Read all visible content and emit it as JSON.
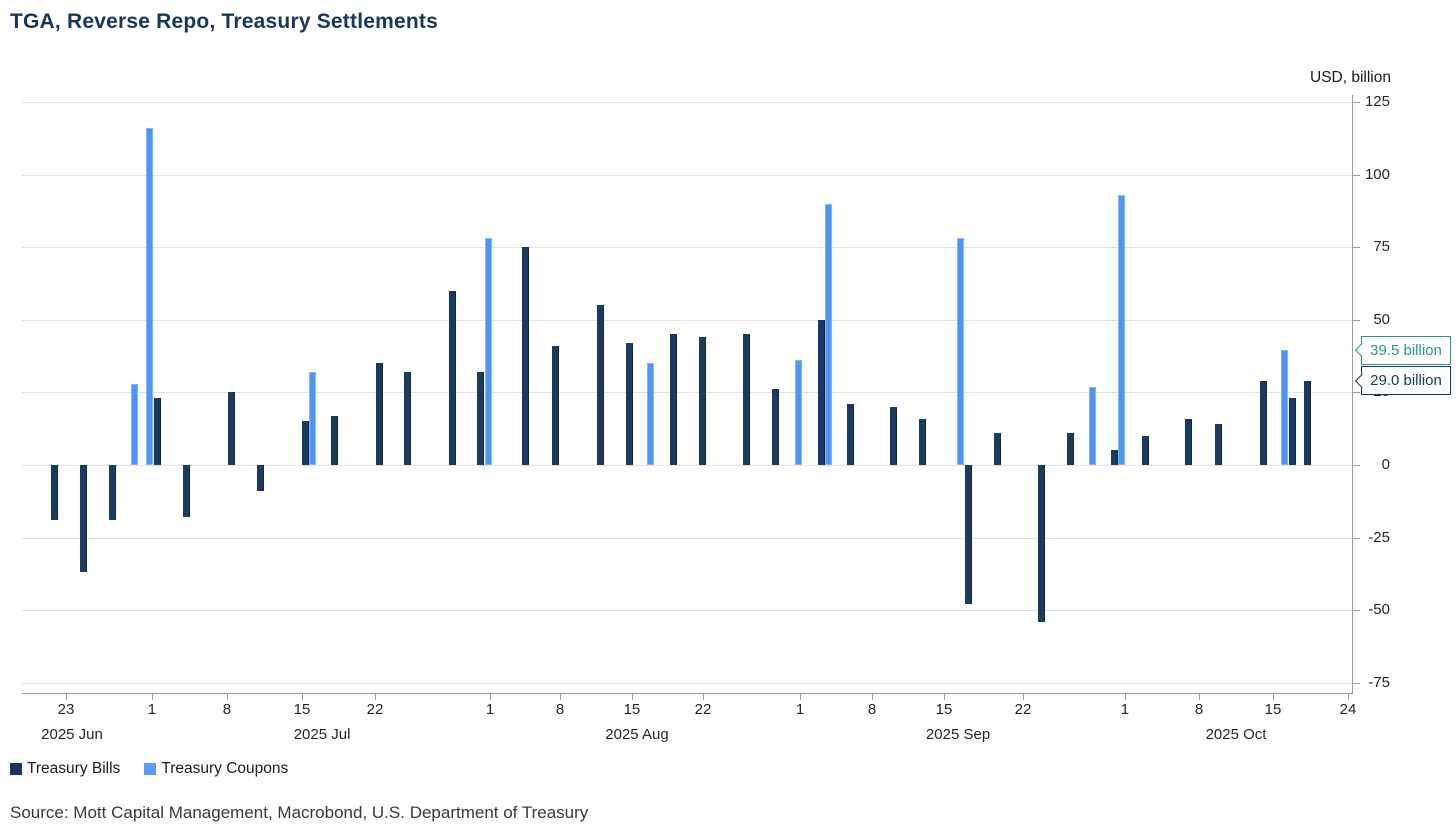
{
  "header": {
    "title": "TGA, Reverse Repo, Treasury Settlements"
  },
  "footer": {
    "source": "Source: Mott Capital Management, Macrobond, U.S. Department of Treasury"
  },
  "chart_data": {
    "type": "bar",
    "title": "TGA, Reverse Repo, Treasury Settlements",
    "ylabel": "USD, billion",
    "xlabel": "",
    "grid": true,
    "legend_position": "bottom-left",
    "axis_color": "#9b9b9b",
    "gridline_color": "#e2e2e2",
    "value_axis": {
      "side": "right",
      "plot_top_value": 127.4,
      "plot_bottom_value": -78.5,
      "ylim": [
        -75,
        125
      ]
    },
    "yticks": [
      125,
      100,
      75,
      50,
      25,
      0,
      -25,
      -50,
      -75
    ],
    "xticks": [
      {
        "label": "23",
        "pos": 0.0331
      },
      {
        "label": "1",
        "pos": 0.0977
      },
      {
        "label": "8",
        "pos": 0.1541
      },
      {
        "label": "15",
        "pos": 0.2105
      },
      {
        "label": "22",
        "pos": 0.2654
      },
      {
        "label": "1",
        "pos": 0.3519
      },
      {
        "label": "8",
        "pos": 0.4045
      },
      {
        "label": "15",
        "pos": 0.4586
      },
      {
        "label": "22",
        "pos": 0.512
      },
      {
        "label": "1",
        "pos": 0.585
      },
      {
        "label": "8",
        "pos": 0.6391
      },
      {
        "label": "15",
        "pos": 0.6932
      },
      {
        "label": "22",
        "pos": 0.7526
      },
      {
        "label": "1",
        "pos": 0.8293
      },
      {
        "label": "8",
        "pos": 0.885
      },
      {
        "label": "15",
        "pos": 0.9406
      },
      {
        "label": "24",
        "pos": 0.997
      }
    ],
    "month_labels": [
      {
        "label": "2025 Jun",
        "pos": 0.0376
      },
      {
        "label": "2025 Jul",
        "pos": 0.2256
      },
      {
        "label": "2025 Aug",
        "pos": 0.4624
      },
      {
        "label": "2025 Sep",
        "pos": 0.7038
      },
      {
        "label": "2025 Oct",
        "pos": 0.9128
      }
    ],
    "series": [
      {
        "key": "bills",
        "name": "Treasury Bills",
        "color": "#17365d"
      },
      {
        "key": "coupons",
        "name": "Treasury Coupons",
        "color": "#5b9bf8"
      }
    ],
    "bars": [
      {
        "pos": 0.0248,
        "series": "bills",
        "value": -19
      },
      {
        "pos": 0.0462,
        "series": "bills",
        "value": -37
      },
      {
        "pos": 0.068,
        "series": "bills",
        "value": -19
      },
      {
        "pos": 0.0846,
        "series": "coupons",
        "value": 28
      },
      {
        "pos": 0.0959,
        "series": "coupons",
        "value": 116
      },
      {
        "pos": 0.1019,
        "series": "bills",
        "value": 23
      },
      {
        "pos": 0.1237,
        "series": "bills",
        "value": -18
      },
      {
        "pos": 0.1575,
        "series": "bills",
        "value": 25
      },
      {
        "pos": 0.1793,
        "series": "bills",
        "value": -9
      },
      {
        "pos": 0.2128,
        "series": "bills",
        "value": 15
      },
      {
        "pos": 0.2184,
        "series": "coupons",
        "value": 32
      },
      {
        "pos": 0.235,
        "series": "bills",
        "value": 17
      },
      {
        "pos": 0.2688,
        "series": "bills",
        "value": 35
      },
      {
        "pos": 0.2902,
        "series": "bills",
        "value": 32
      },
      {
        "pos": 0.3237,
        "series": "bills",
        "value": 60
      },
      {
        "pos": 0.3451,
        "series": "bills",
        "value": 32
      },
      {
        "pos": 0.3507,
        "series": "coupons",
        "value": 78
      },
      {
        "pos": 0.3789,
        "series": "bills",
        "value": 75
      },
      {
        "pos": 0.4015,
        "series": "bills",
        "value": 41
      },
      {
        "pos": 0.4346,
        "series": "bills",
        "value": 55
      },
      {
        "pos": 0.4564,
        "series": "bills",
        "value": 42
      },
      {
        "pos": 0.4729,
        "series": "coupons",
        "value": 35
      },
      {
        "pos": 0.4902,
        "series": "bills",
        "value": 45
      },
      {
        "pos": 0.5113,
        "series": "bills",
        "value": 44
      },
      {
        "pos": 0.5451,
        "series": "bills",
        "value": 45
      },
      {
        "pos": 0.5669,
        "series": "bills",
        "value": 26
      },
      {
        "pos": 0.5835,
        "series": "coupons",
        "value": 36
      },
      {
        "pos": 0.6008,
        "series": "bills",
        "value": 50
      },
      {
        "pos": 0.6064,
        "series": "coupons",
        "value": 90
      },
      {
        "pos": 0.6226,
        "series": "bills",
        "value": 21
      },
      {
        "pos": 0.6556,
        "series": "bills",
        "value": 20
      },
      {
        "pos": 0.6774,
        "series": "bills",
        "value": 16
      },
      {
        "pos": 0.7053,
        "series": "coupons",
        "value": 78
      },
      {
        "pos": 0.7113,
        "series": "bills",
        "value": -48
      },
      {
        "pos": 0.7331,
        "series": "bills",
        "value": 11
      },
      {
        "pos": 0.7665,
        "series": "bills",
        "value": -54
      },
      {
        "pos": 0.788,
        "series": "bills",
        "value": 11
      },
      {
        "pos": 0.8049,
        "series": "coupons",
        "value": 27
      },
      {
        "pos": 0.8218,
        "series": "bills",
        "value": 5
      },
      {
        "pos": 0.8267,
        "series": "coupons",
        "value": 93
      },
      {
        "pos": 0.8444,
        "series": "bills",
        "value": 10
      },
      {
        "pos": 0.8774,
        "series": "bills",
        "value": 16
      },
      {
        "pos": 0.8996,
        "series": "bills",
        "value": 14
      },
      {
        "pos": 0.9331,
        "series": "bills",
        "value": 29
      },
      {
        "pos": 0.9489,
        "series": "coupons",
        "value": 39.5
      },
      {
        "pos": 0.9549,
        "series": "bills",
        "value": 23
      },
      {
        "pos": 0.9662,
        "series": "bills",
        "value": 29
      }
    ],
    "callouts": [
      {
        "label": "39.5 billion",
        "value": 39.5,
        "color": "#2e948a"
      },
      {
        "label": "29.0 billion",
        "value": 29.0,
        "color": "#17365d"
      }
    ]
  }
}
